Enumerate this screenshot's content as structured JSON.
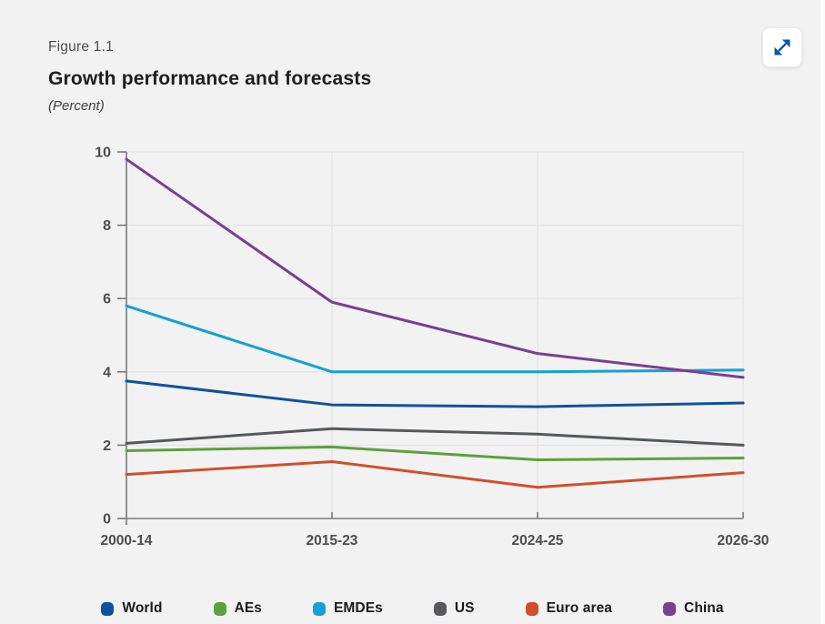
{
  "figure": {
    "label": "Figure 1.1",
    "title": "Growth performance and forecasts",
    "subtitle": "(Percent)"
  },
  "chart_data": {
    "type": "line",
    "title": "Growth performance and forecasts",
    "units": "Percent",
    "categories": [
      "2000-14",
      "2015-23",
      "2024-25",
      "2026-30"
    ],
    "series": [
      {
        "name": "World",
        "color": "#10519f",
        "values": [
          3.75,
          3.1,
          3.05,
          3.15
        ]
      },
      {
        "name": "AEs",
        "color": "#5ca13e",
        "values": [
          1.85,
          1.95,
          1.6,
          1.65
        ]
      },
      {
        "name": "EMDEs",
        "color": "#16a0d5",
        "values": [
          5.8,
          4.0,
          4.0,
          4.05
        ]
      },
      {
        "name": "US",
        "color": "#55595c",
        "values": [
          2.05,
          2.45,
          2.3,
          2.0
        ]
      },
      {
        "name": "Euro area",
        "color": "#d24e2a",
        "values": [
          1.2,
          1.55,
          0.85,
          1.25
        ]
      },
      {
        "name": "China",
        "color": "#7a3e92",
        "values": [
          9.8,
          5.9,
          4.5,
          3.85
        ]
      }
    ],
    "ylim": [
      0,
      10
    ],
    "ytick_step": 2,
    "grid": true,
    "legend_position": "bottom",
    "colors": {
      "background": "#f2f2f2",
      "gridline": "#e4e4e4",
      "axis": "#7a7a7a",
      "tick_label": "#4d4d4d",
      "legend_text": "#1a1a1a",
      "accent_blue": "#0b57a4"
    }
  }
}
